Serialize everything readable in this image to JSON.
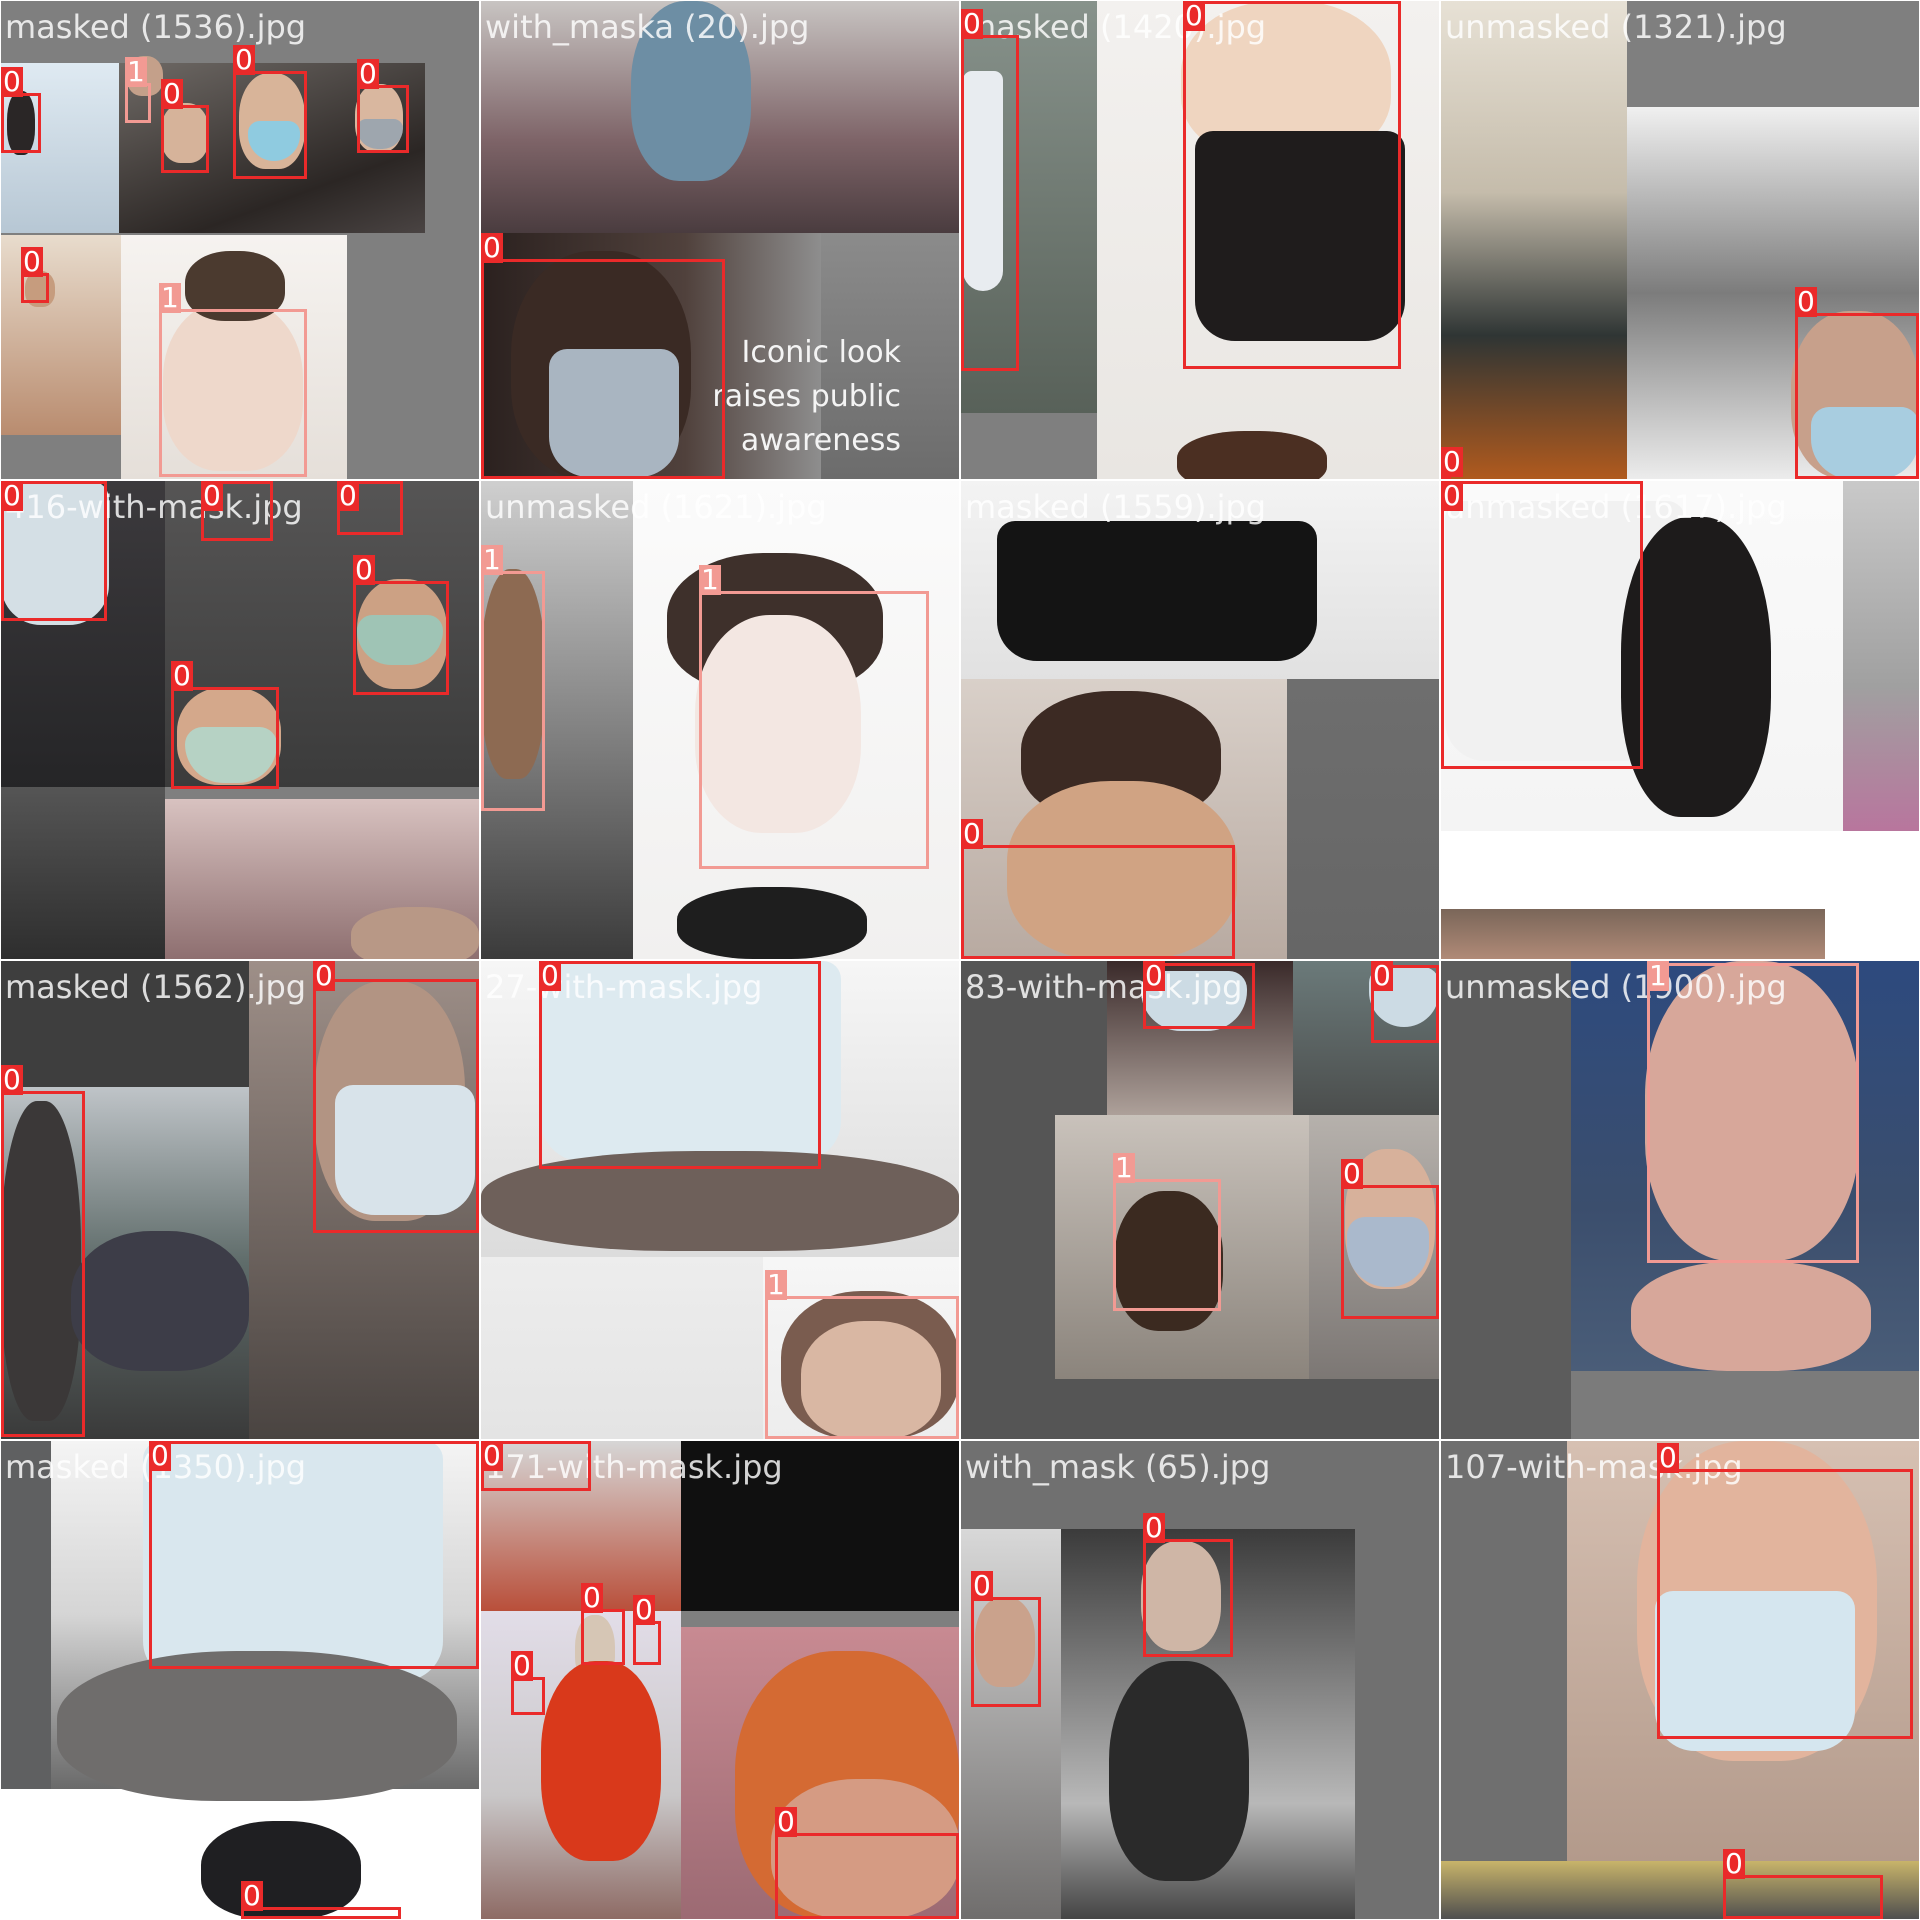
{
  "colors": {
    "class0": "#ea2a2a",
    "class1": "#f29a93",
    "background": "#7f7f7f"
  },
  "tiles": [
    {
      "caption": "masked (1536).jpg",
      "boxes": [
        {
          "label": "0"
        },
        {
          "label": "1"
        },
        {
          "label": "0"
        },
        {
          "label": "0"
        },
        {
          "label": "0"
        },
        {
          "label": "0"
        },
        {
          "label": "1"
        }
      ]
    },
    {
      "caption": "with_maska (20).jpg",
      "embedded_text": [
        "Iconic look",
        "raises public",
        "awareness"
      ],
      "boxes": [
        {
          "label": "0"
        }
      ]
    },
    {
      "caption": "masked (1420).jpg",
      "boxes": [
        {
          "label": "0"
        },
        {
          "label": "0"
        }
      ]
    },
    {
      "caption": "unmasked (1321).jpg",
      "boxes": [
        {
          "label": "0"
        },
        {
          "label": "0"
        }
      ]
    },
    {
      "caption": "416-with-mask.jpg",
      "boxes": [
        {
          "label": "0"
        },
        {
          "label": "0"
        },
        {
          "label": "0"
        },
        {
          "label": "0"
        },
        {
          "label": "0"
        }
      ]
    },
    {
      "caption": "unmasked (1621).jpg",
      "boxes": [
        {
          "label": "1"
        },
        {
          "label": "1"
        }
      ]
    },
    {
      "caption": "masked (1559).jpg",
      "boxes": [
        {
          "label": "0"
        }
      ]
    },
    {
      "caption": "unmasked (1617).jpg",
      "boxes": [
        {
          "label": "0"
        }
      ]
    },
    {
      "caption": "masked (1562).jpg",
      "boxes": [
        {
          "label": "0"
        },
        {
          "label": "0"
        }
      ]
    },
    {
      "caption": "27-with-mask.jpg",
      "boxes": [
        {
          "label": "0"
        },
        {
          "label": "1"
        }
      ]
    },
    {
      "caption": "83-with-mask.jpg",
      "boxes": [
        {
          "label": "0"
        },
        {
          "label": "0"
        },
        {
          "label": "1"
        },
        {
          "label": "0"
        }
      ]
    },
    {
      "caption": "unmasked (1900).jpg",
      "boxes": [
        {
          "label": "1"
        }
      ]
    },
    {
      "caption": "masked (1350).jpg",
      "boxes": [
        {
          "label": "0"
        },
        {
          "label": "0"
        }
      ]
    },
    {
      "caption": "171-with-mask.jpg",
      "boxes": [
        {
          "label": "0"
        },
        {
          "label": "0"
        },
        {
          "label": "0"
        },
        {
          "label": "0"
        },
        {
          "label": "0"
        }
      ]
    },
    {
      "caption": "with_mask (65).jpg",
      "boxes": [
        {
          "label": "0"
        },
        {
          "label": "0"
        }
      ]
    },
    {
      "caption": "107-with-mask.jpg",
      "boxes": [
        {
          "label": "0"
        },
        {
          "label": "0"
        }
      ]
    }
  ]
}
